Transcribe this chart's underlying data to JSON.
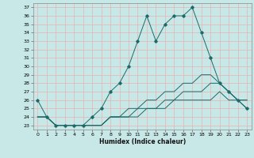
{
  "title": "",
  "xlabel": "Humidex (Indice chaleur)",
  "bg_color": "#c8e8e8",
  "grid_color": "#e8b0b0",
  "line_color": "#1a6b6b",
  "xlim": [
    -0.5,
    23.5
  ],
  "ylim": [
    22.5,
    37.5
  ],
  "xticks": [
    0,
    1,
    2,
    3,
    4,
    5,
    6,
    7,
    8,
    9,
    10,
    11,
    12,
    13,
    14,
    15,
    16,
    17,
    18,
    19,
    20,
    21,
    22,
    23
  ],
  "yticks": [
    23,
    24,
    25,
    26,
    27,
    28,
    29,
    30,
    31,
    32,
    33,
    34,
    35,
    36,
    37
  ],
  "lines": [
    {
      "x": [
        0,
        1,
        2,
        3,
        4,
        5,
        6,
        7,
        8,
        9,
        10,
        11,
        12,
        13,
        14,
        15,
        16,
        17,
        18,
        19,
        20,
        21,
        22,
        23
      ],
      "y": [
        26,
        24,
        23,
        23,
        23,
        23,
        24,
        25,
        27,
        28,
        30,
        33,
        36,
        33,
        35,
        36,
        36,
        37,
        34,
        31,
        28,
        27,
        26,
        25
      ],
      "marker": "D",
      "markersize": 1.8,
      "lw": 0.7
    },
    {
      "x": [
        0,
        1,
        2,
        3,
        4,
        5,
        6,
        7,
        8,
        9,
        10,
        11,
        12,
        13,
        14,
        15,
        16,
        17,
        18,
        19,
        20,
        21,
        22,
        23
      ],
      "y": [
        24,
        24,
        23,
        23,
        23,
        23,
        23,
        23,
        24,
        24,
        25,
        25,
        26,
        26,
        27,
        27,
        28,
        28,
        29,
        29,
        28,
        27,
        26,
        25
      ],
      "marker": null,
      "markersize": 0,
      "lw": 0.7
    },
    {
      "x": [
        0,
        1,
        2,
        3,
        4,
        5,
        6,
        7,
        8,
        9,
        10,
        11,
        12,
        13,
        14,
        15,
        16,
        17,
        18,
        19,
        20,
        21,
        22,
        23
      ],
      "y": [
        24,
        24,
        23,
        23,
        23,
        23,
        23,
        23,
        24,
        24,
        24,
        25,
        25,
        25,
        26,
        26,
        27,
        27,
        27,
        28,
        28,
        27,
        26,
        26
      ],
      "marker": null,
      "markersize": 0,
      "lw": 0.7
    },
    {
      "x": [
        0,
        1,
        2,
        3,
        4,
        5,
        6,
        7,
        8,
        9,
        10,
        11,
        12,
        13,
        14,
        15,
        16,
        17,
        18,
        19,
        20,
        21,
        22,
        23
      ],
      "y": [
        24,
        24,
        23,
        23,
        23,
        23,
        23,
        23,
        24,
        24,
        24,
        24,
        25,
        25,
        25,
        26,
        26,
        26,
        26,
        26,
        27,
        26,
        26,
        26
      ],
      "marker": null,
      "markersize": 0,
      "lw": 0.7
    }
  ],
  "tick_fontsize": 4.5,
  "xlabel_fontsize": 5.5,
  "xlabel_fontweight": "bold"
}
